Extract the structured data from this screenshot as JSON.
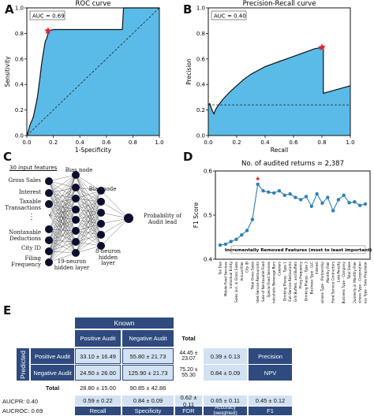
{
  "panels": {
    "a": "A",
    "b": "B",
    "c": "C",
    "d": "D",
    "e": "E"
  },
  "chart_data": [
    {
      "type": "area",
      "title": "ROC curve",
      "xlabel": "1-Specificity",
      "ylabel": "Sensitivity",
      "annotation": "AUC = 0.69",
      "xlim": [
        0,
        1
      ],
      "ylim": [
        0,
        1
      ],
      "xticks": [
        "0.0",
        "0.2",
        "0.4",
        "0.6",
        "0.8",
        "1.0"
      ],
      "yticks": [
        "0.0",
        "0.2",
        "0.4",
        "0.6",
        "0.8",
        "1.0"
      ],
      "fill_color": "#5bbbe8",
      "marker_color": "#e8232a",
      "curve": [
        [
          0,
          0
        ],
        [
          0.01,
          0.03
        ],
        [
          0.02,
          0.07
        ],
        [
          0.03,
          0.1
        ],
        [
          0.04,
          0.12
        ],
        [
          0.05,
          0.15
        ],
        [
          0.06,
          0.2
        ],
        [
          0.07,
          0.25
        ],
        [
          0.08,
          0.3
        ],
        [
          0.09,
          0.38
        ],
        [
          0.1,
          0.46
        ],
        [
          0.11,
          0.55
        ],
        [
          0.12,
          0.62
        ],
        [
          0.13,
          0.68
        ],
        [
          0.14,
          0.74
        ],
        [
          0.15,
          0.76
        ],
        [
          0.16,
          0.8
        ],
        [
          0.17,
          0.82
        ],
        [
          0.2,
          0.83
        ],
        [
          0.25,
          0.83
        ],
        [
          0.3,
          0.83
        ],
        [
          0.4,
          0.83
        ],
        [
          0.5,
          0.83
        ],
        [
          0.6,
          0.83
        ],
        [
          0.72,
          0.83
        ],
        [
          0.73,
          1.0
        ],
        [
          0.8,
          1.0
        ],
        [
          0.9,
          1.0
        ],
        [
          1.0,
          1.0
        ]
      ],
      "marker": [
        0.16,
        0.82
      ],
      "diagonal": true
    },
    {
      "type": "area",
      "title": "Precision-Recall curve",
      "xlabel": "Recall",
      "ylabel": "Precision",
      "annotation": "AUC = 0.40",
      "xlim": [
        0,
        1
      ],
      "ylim": [
        0,
        1
      ],
      "xticks": [
        "0.0",
        "0.2",
        "0.4",
        "0.6",
        "0.8",
        "1.0"
      ],
      "yticks": [
        "0.0",
        "0.2",
        "0.4",
        "0.6",
        "0.8",
        "1.0"
      ],
      "fill_color": "#5bbbe8",
      "marker_color": "#e8232a",
      "curve": [
        [
          0,
          0.24
        ],
        [
          0.01,
          0.25
        ],
        [
          0.02,
          0.22
        ],
        [
          0.03,
          0.19
        ],
        [
          0.04,
          0.17
        ],
        [
          0.05,
          0.2
        ],
        [
          0.06,
          0.22
        ],
        [
          0.08,
          0.25
        ],
        [
          0.1,
          0.28
        ],
        [
          0.15,
          0.34
        ],
        [
          0.2,
          0.39
        ],
        [
          0.25,
          0.44
        ],
        [
          0.3,
          0.48
        ],
        [
          0.35,
          0.51
        ],
        [
          0.4,
          0.54
        ],
        [
          0.45,
          0.56
        ],
        [
          0.5,
          0.58
        ],
        [
          0.55,
          0.6
        ],
        [
          0.6,
          0.62
        ],
        [
          0.65,
          0.64
        ],
        [
          0.7,
          0.66
        ],
        [
          0.75,
          0.68
        ],
        [
          0.8,
          0.69
        ],
        [
          0.81,
          0.7
        ],
        [
          0.81,
          0.33
        ],
        [
          1.0,
          0.39
        ]
      ],
      "marker": [
        0.8,
        0.69
      ],
      "baseline": 0.24
    },
    {
      "type": "line",
      "title": "No. of audited returns = 2,387",
      "ylabel": "F1 Score",
      "xlabel_box": "Incrementally Removed Features (most to least important)",
      "ylim": [
        0.4,
        0.6
      ],
      "yticks": [
        "0.4",
        "0.5",
        "0.6"
      ],
      "line_color": "#2e7fb8",
      "marker_color": "#e8232a",
      "categories": [
        "Tax Due",
        "Mobile Food Services",
        "Individual Entity",
        "Nontax. Sales incl. in Gross Sales",
        "Annual Filer",
        "City ID",
        "Total Gross Sales",
        "Limited-Service Restaurants",
        "Sale of Nontaxable Food",
        "Special Food Services",
        "Nonalcoholic Beverage Bars",
        "Caterers",
        "Drinking Places - Type 1",
        "Full-Service Restaurants",
        "Cafeterias, Grill Buffets, and Buffets",
        "Filing Frequency",
        "Drinking Places - Type 2",
        "Business Type - LLC",
        "Interest",
        "Business Type - Partnership",
        "Monthly Filer",
        "Food Service Contractors",
        "Late Penalty",
        "Business Type - Company",
        "Total Sales",
        "Quarterly or Monthly Filer",
        "Business Type - Corporation",
        "Business Type - Sole Proprietor"
      ],
      "values": [
        0.432,
        0.434,
        0.44,
        0.445,
        0.455,
        0.465,
        0.49,
        0.57,
        0.555,
        0.552,
        0.55,
        0.555,
        0.545,
        0.548,
        0.54,
        0.535,
        0.542,
        0.52,
        0.548,
        0.527,
        0.54,
        0.51,
        0.535,
        0.545,
        0.528,
        0.53,
        0.522,
        0.525
      ],
      "peak_index": 7
    }
  ],
  "diagram": {
    "input_features_title": "30 input features",
    "features": [
      "Gross Sales",
      "Interest",
      "Taxable Transactions",
      "Nontaxable Deductions",
      "City ID",
      "Filing Frequency"
    ],
    "ellipsis": "⋮",
    "bias1": "Bias node",
    "bias2": "Bias node",
    "hidden1": "19-neuron hidden layer",
    "hidden2": "8-neuron hidden layer",
    "output": "Probability of Audit lead"
  },
  "table": {
    "known": "Known",
    "predicted": "Predicted",
    "col_pos": "Positive Audit",
    "col_neg": "Negative Audit",
    "total": "Total",
    "row_pos": "Positive Audit",
    "row_neg": "Negative Audit",
    "tp": "33.10 ± 16.49",
    "fp": "55.80 ± 21.73",
    "fn": "24.50 ± 26.00",
    "tn": "125.90 ± 21.73",
    "row_pos_total": "44.45 ± 23.07",
    "row_neg_total": "75.20 ± 55.30",
    "col_pos_total": "28.80 ± 15.00",
    "col_neg_total": "90.85 ± 42.86",
    "precision_val": "0.39 ± 0.13",
    "npv_val": "0.84 ± 0.09",
    "precision": "Precision",
    "npv": "NPV",
    "aucpr": "AUCPR: 0.40",
    "aucroc": "AUCROC: 0.69",
    "recall_val": "0.59 ± 0.22",
    "spec_val": "0.84 ± 0.09",
    "fdr_val": "0.62 ± 0.11",
    "acc_val": "0.65 ± 0.11",
    "f1_val": "0.45 ± 0.12",
    "recall": "Recall",
    "specificity": "Specificity",
    "fdr": "FDR",
    "accuracy": "Accuracy (weighted)",
    "f1": "F1"
  }
}
